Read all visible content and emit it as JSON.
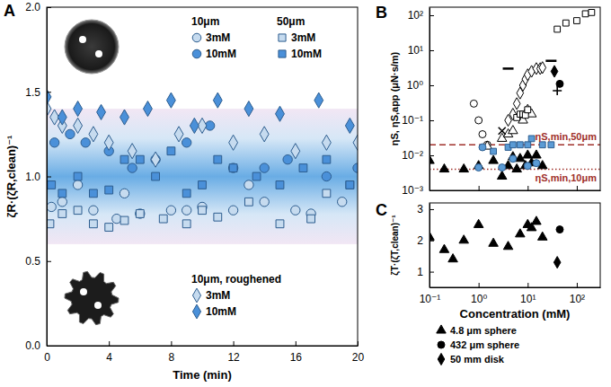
{
  "chart_data": [
    {
      "type": "scatter",
      "title": "A",
      "x_label": "Time (min)",
      "y_label": "ζR·(ζR,clean)⁻¹",
      "xlim": [
        0,
        20
      ],
      "ylim": [
        0,
        2
      ],
      "xticks": [
        0,
        4,
        8,
        12,
        16,
        20
      ],
      "yticks": [
        {
          "value": 0,
          "label": "0.0"
        },
        {
          "value": 0.5,
          "label": "0.5"
        },
        {
          "value": 1,
          "label": "1.0"
        },
        {
          "value": 1.5,
          "label": "1.5"
        },
        {
          "value": 2,
          "label": "2.0"
        }
      ],
      "band": [
        0.6,
        1.4
      ],
      "legend": "top-right",
      "series": [
        {
          "name": "3mM",
          "group": "10μm",
          "marker": "circle",
          "color": "#c6dbef",
          "x": [
            0.3,
            1,
            2,
            3,
            4.5,
            5,
            6,
            8,
            9,
            10,
            12,
            13,
            14,
            16,
            17,
            19
          ],
          "values": [
            0.82,
            0.85,
            0.95,
            0.8,
            0.75,
            0.9,
            0.78,
            0.8,
            0.8,
            0.82,
            0.8,
            0.95,
            0.85,
            0.8,
            0.78,
            0.85
          ]
        },
        {
          "name": "10mM",
          "group": "10μm",
          "marker": "circle",
          "color": "#4a90d9",
          "x": [
            0.5,
            1.5,
            2.5,
            4,
            5.5,
            7,
            9,
            10.5,
            12,
            14,
            15.5,
            18,
            20
          ],
          "values": [
            1.2,
            1.25,
            1.2,
            1.15,
            1.05,
            1.1,
            1.2,
            1.3,
            1.05,
            1.05,
            1.1,
            1.0,
            1.05
          ]
        },
        {
          "name": "3mM",
          "group": "50μm",
          "marker": "square",
          "color": "#c6dbef",
          "x": [
            0.2,
            1,
            2,
            3,
            4,
            5,
            6,
            7.5,
            9,
            10,
            11,
            13,
            15,
            17,
            18,
            19.5
          ],
          "values": [
            0.72,
            0.78,
            0.8,
            0.72,
            0.7,
            0.74,
            0.78,
            0.75,
            0.72,
            0.8,
            0.76,
            0.85,
            0.72,
            0.75,
            0.9,
            0.95
          ]
        },
        {
          "name": "10mM",
          "group": "50μm",
          "marker": "square",
          "color": "#4a90d9",
          "x": [
            0.3,
            1,
            2,
            3,
            4,
            5,
            6,
            7,
            8,
            9,
            10,
            11,
            12,
            13.5,
            15,
            16.5,
            18,
            19.5
          ],
          "values": [
            0.95,
            0.9,
            1.0,
            0.9,
            0.92,
            1.1,
            1.1,
            1.0,
            1.15,
            0.9,
            0.95,
            1.1,
            1.05,
            1.0,
            0.95,
            1.05,
            1.1,
            0.95
          ]
        },
        {
          "name": "3mM",
          "group": "10μm, roughened",
          "marker": "diamond",
          "color": "#c6dbef",
          "x": [
            0,
            0.5,
            1,
            2,
            3,
            4,
            5.5,
            7,
            8.5,
            10,
            12,
            14,
            16,
            18,
            20
          ],
          "values": [
            1.4,
            1.35,
            1.3,
            1.3,
            1.25,
            1.2,
            1.15,
            1.1,
            1.25,
            1.3,
            1.2,
            1.25,
            1.15,
            1.2,
            1.2
          ]
        },
        {
          "name": "10mM",
          "group": "10μm, roughened",
          "marker": "diamond",
          "color": "#4a90d9",
          "x": [
            0,
            1,
            2,
            3.5,
            5,
            6.5,
            8,
            9.5,
            11,
            13,
            15,
            17.5,
            19.5
          ],
          "values": [
            1.47,
            1.35,
            1.4,
            1.38,
            1.35,
            1.4,
            1.45,
            1.3,
            1.45,
            1.4,
            1.37,
            1.45,
            1.3
          ]
        }
      ]
    },
    {
      "type": "scatter",
      "title": "B",
      "y_label": "ηS, ηS,app (μN·s/m)",
      "log": true,
      "tick_labels": "y",
      "xlim": [
        0.1,
        300
      ],
      "ylim": [
        0.001,
        170
      ],
      "xticks": [
        0.1,
        1,
        10,
        100
      ],
      "yticks": [
        {
          "value": 0.001,
          "label": "10⁻³"
        },
        {
          "value": 0.01,
          "label": "10⁻²"
        },
        {
          "value": 0.1,
          "label": "10⁻¹"
        },
        {
          "value": 1,
          "label": "10⁰"
        },
        {
          "value": 10,
          "label": "10¹"
        },
        {
          "value": 100,
          "label": "10²"
        }
      ],
      "hlines": [
        {
          "value": 0.02,
          "label": "ηS,min,50μm",
          "line_style": "dashed",
          "color": "#a0302a"
        },
        {
          "value": 0.004,
          "label": "ηS,min,10μm",
          "line_style": "dotted",
          "color": "#a0302a"
        }
      ],
      "series": [
        {
          "marker": "triangle",
          "color": "#000000",
          "x": [
            0.1,
            0.2,
            0.5,
            1,
            2,
            3,
            4,
            5,
            6,
            7,
            9,
            10,
            12,
            15,
            20
          ],
          "values": [
            0.007,
            0.004,
            0.004,
            0.005,
            0.007,
            0.0025,
            0.005,
            0.009,
            0.004,
            0.008,
            0.005,
            0.01,
            0.006,
            0.01,
            0.005
          ]
        },
        {
          "marker": "circle",
          "color": "#ffffff",
          "x": [
            0.8,
            1.0,
            1.2,
            1.5
          ],
          "values": [
            0.3,
            0.1,
            0.04,
            0.02
          ]
        },
        {
          "marker": "triangle",
          "color": "#ffffff",
          "x": [
            1.5,
            3,
            4,
            5,
            8,
            10,
            12
          ],
          "values": [
            0.018,
            0.03,
            0.04,
            0.05,
            0.1,
            0.2,
            0.15
          ]
        },
        {
          "marker": "diamond",
          "color": "#ffffff",
          "x": [
            4,
            5,
            6,
            7,
            8,
            9,
            10,
            12,
            15,
            18,
            20
          ],
          "values": [
            0.1,
            0.15,
            0.3,
            0.6,
            1,
            1.5,
            2,
            2.5,
            3,
            3,
            3.2
          ]
        },
        {
          "marker": "square",
          "color": "#ffffff",
          "x": [
            6,
            7,
            8,
            9,
            10,
            40,
            60,
            100,
            150,
            200
          ],
          "values": [
            0.12,
            0.15,
            0.15,
            0.14,
            0.2,
            40,
            60,
            70,
            110,
            120
          ]
        },
        {
          "marker": "circle",
          "color": "#5b9bd5",
          "x": [
            1,
            1.2,
            3,
            5,
            10,
            15
          ],
          "values": [
            0.0045,
            0.017,
            0.0045,
            0.008,
            0.005,
            0.006
          ]
        },
        {
          "marker": "square",
          "color": "#5b9bd5",
          "x": [
            2,
            4,
            5,
            7,
            10,
            12,
            20,
            30
          ],
          "values": [
            0.013,
            0.017,
            0.02,
            0.02,
            0.02,
            0.03,
            0.02,
            0.02
          ]
        },
        {
          "marker": "dash",
          "color": "#000000",
          "x": [
            4,
            30
          ],
          "values": [
            3,
            5
          ]
        },
        {
          "marker": "plus",
          "color": "#000000",
          "x": [
            40
          ],
          "values": [
            0.7
          ]
        },
        {
          "marker": "cross",
          "color": "#000000",
          "x": [
            3
          ],
          "values": [
            0.05
          ]
        },
        {
          "marker": "circle",
          "color": "#000000",
          "x": [
            45
          ],
          "values": [
            1.1
          ]
        },
        {
          "marker": "diamond",
          "color": "#000000",
          "x": [
            35
          ],
          "values": [
            2.5
          ]
        }
      ]
    },
    {
      "type": "scatter",
      "title": "C",
      "x_label": "Concentration (mM)",
      "y_label": "ζT·(ζT,clean)⁻¹",
      "log": "x",
      "legend": "bottom-left",
      "xlim": [
        0.1,
        300
      ],
      "ylim": [
        0.5,
        3.2
      ],
      "xticks": [
        {
          "value": 0.1,
          "label": "10⁻¹"
        },
        {
          "value": 1,
          "label": "10⁰"
        },
        {
          "value": 10,
          "label": "10¹"
        },
        {
          "value": 100,
          "label": "10²"
        }
      ],
      "yticks": [
        1,
        2,
        3
      ],
      "series": [
        {
          "name": "4.8 μm sphere",
          "marker": "triangle",
          "color": "#000000",
          "x": [
            0.1,
            0.2,
            0.3,
            0.5,
            1,
            2,
            4,
            7,
            10,
            12,
            15,
            20
          ],
          "values": [
            2.1,
            1.7,
            1.4,
            2.0,
            2.5,
            1.9,
            1.8,
            2.2,
            2.5,
            2.4,
            2.6,
            2.1
          ]
        },
        {
          "name": "432 μm sphere",
          "marker": "circle",
          "color": "#000000",
          "x": [
            45
          ],
          "values": [
            2.35
          ]
        },
        {
          "name": "50 mm disk",
          "marker": "diamond",
          "color": "#000000",
          "x": [
            40
          ],
          "values": [
            1.3
          ]
        }
      ]
    }
  ]
}
